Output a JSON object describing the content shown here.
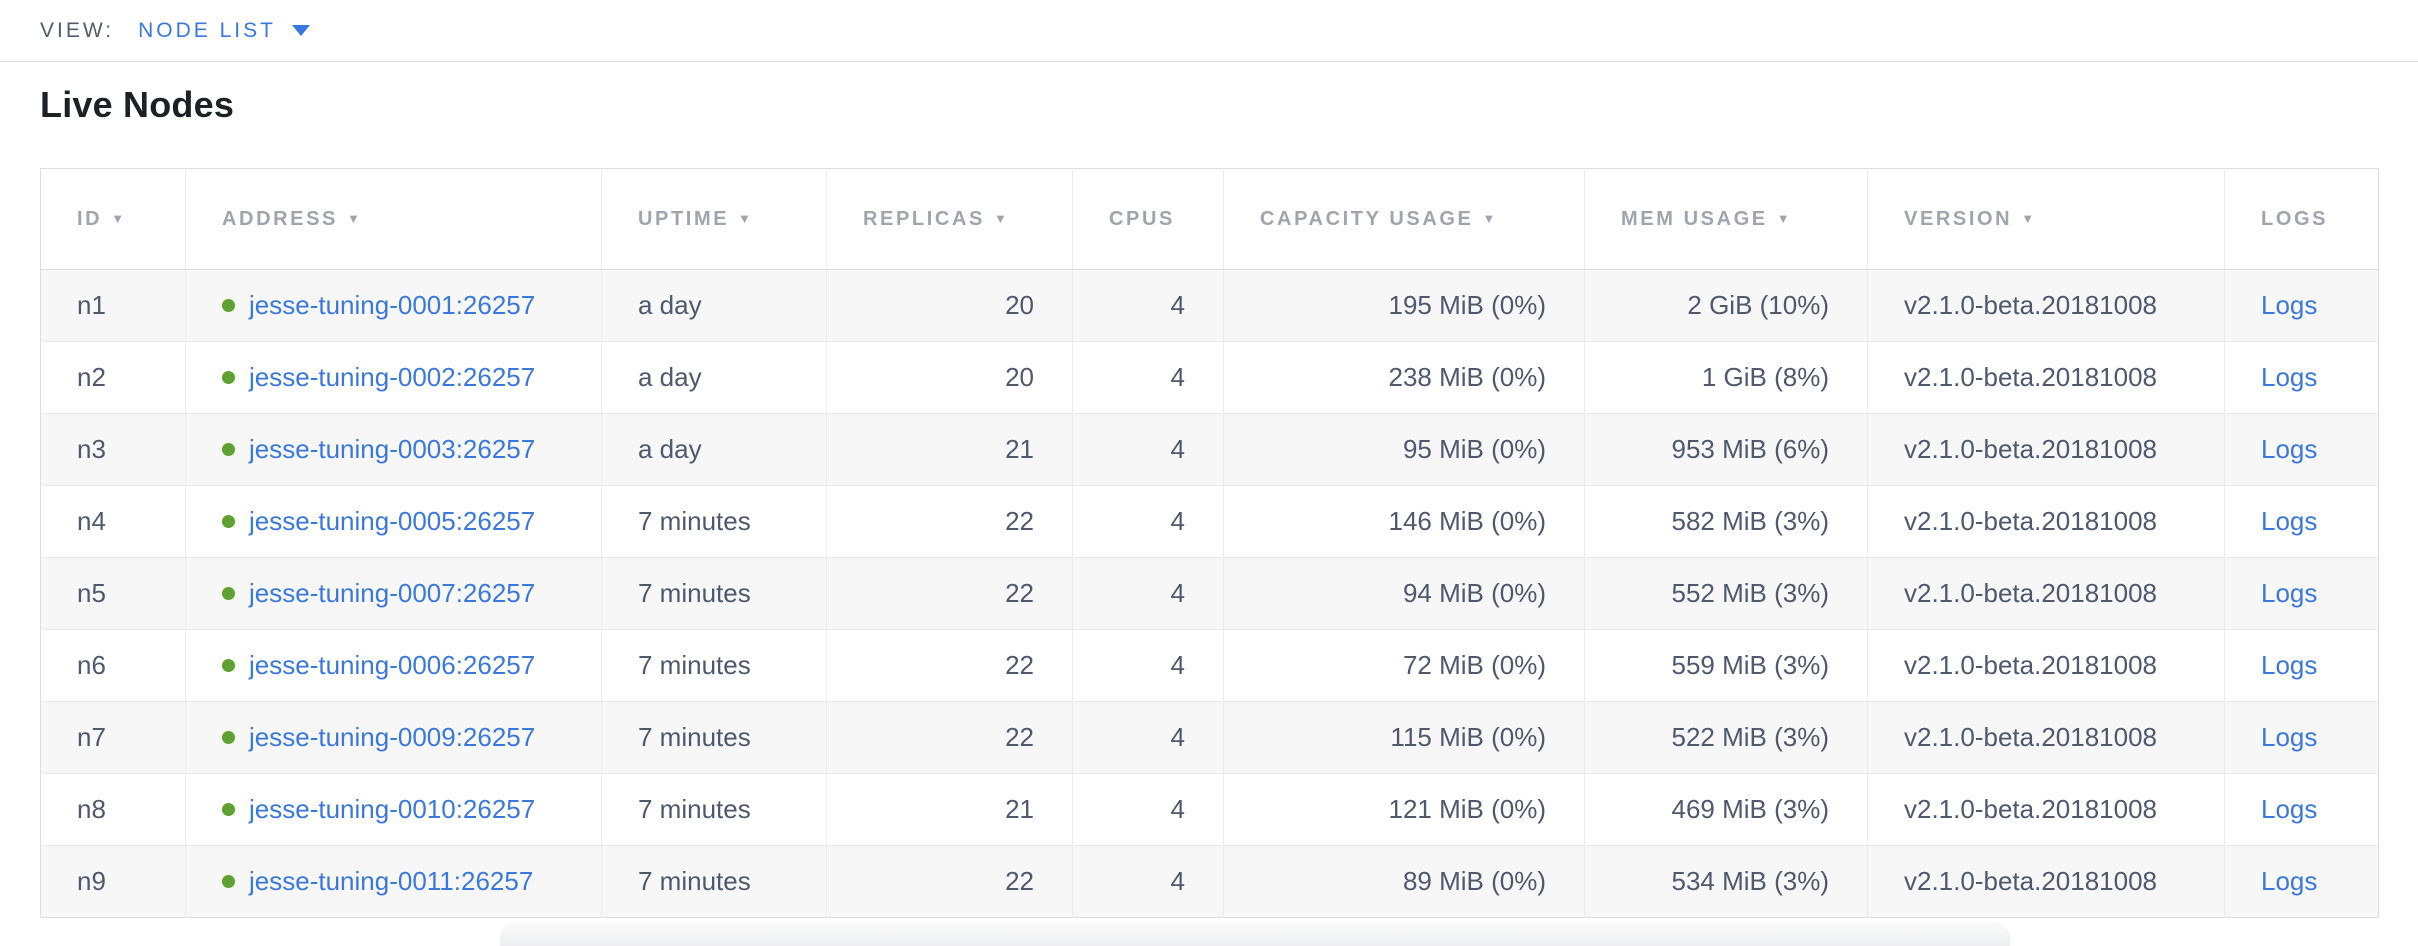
{
  "view_bar": {
    "label": "VIEW:",
    "selected": "NODE LIST"
  },
  "page": {
    "title": "Live Nodes"
  },
  "table": {
    "columns": [
      {
        "key": "id",
        "label": "ID",
        "sortable": true,
        "align": "left"
      },
      {
        "key": "address",
        "label": "ADDRESS",
        "sortable": true,
        "align": "left"
      },
      {
        "key": "uptime",
        "label": "UPTIME",
        "sortable": true,
        "align": "left"
      },
      {
        "key": "replicas",
        "label": "REPLICAS",
        "sortable": true,
        "align": "right"
      },
      {
        "key": "cpus",
        "label": "CPUS",
        "sortable": false,
        "align": "right"
      },
      {
        "key": "capacity",
        "label": "CAPACITY USAGE",
        "sortable": true,
        "align": "right"
      },
      {
        "key": "mem",
        "label": "MEM USAGE",
        "sortable": true,
        "align": "right"
      },
      {
        "key": "version",
        "label": "VERSION",
        "sortable": true,
        "align": "left"
      },
      {
        "key": "logs",
        "label": "LOGS",
        "sortable": false,
        "align": "left"
      }
    ],
    "rows": [
      {
        "id": "n1",
        "status": "live",
        "address": "jesse-tuning-0001:26257",
        "uptime": "a day",
        "replicas": "20",
        "cpus": "4",
        "capacity": "195 MiB (0%)",
        "mem": "2 GiB (10%)",
        "version": "v2.1.0-beta.20181008",
        "logs": "Logs"
      },
      {
        "id": "n2",
        "status": "live",
        "address": "jesse-tuning-0002:26257",
        "uptime": "a day",
        "replicas": "20",
        "cpus": "4",
        "capacity": "238 MiB (0%)",
        "mem": "1 GiB (8%)",
        "version": "v2.1.0-beta.20181008",
        "logs": "Logs"
      },
      {
        "id": "n3",
        "status": "live",
        "address": "jesse-tuning-0003:26257",
        "uptime": "a day",
        "replicas": "21",
        "cpus": "4",
        "capacity": "95 MiB (0%)",
        "mem": "953 MiB (6%)",
        "version": "v2.1.0-beta.20181008",
        "logs": "Logs"
      },
      {
        "id": "n4",
        "status": "live",
        "address": "jesse-tuning-0005:26257",
        "uptime": "7 minutes",
        "replicas": "22",
        "cpus": "4",
        "capacity": "146 MiB (0%)",
        "mem": "582 MiB (3%)",
        "version": "v2.1.0-beta.20181008",
        "logs": "Logs"
      },
      {
        "id": "n5",
        "status": "live",
        "address": "jesse-tuning-0007:26257",
        "uptime": "7 minutes",
        "replicas": "22",
        "cpus": "4",
        "capacity": "94 MiB (0%)",
        "mem": "552 MiB (3%)",
        "version": "v2.1.0-beta.20181008",
        "logs": "Logs"
      },
      {
        "id": "n6",
        "status": "live",
        "address": "jesse-tuning-0006:26257",
        "uptime": "7 minutes",
        "replicas": "22",
        "cpus": "4",
        "capacity": "72 MiB (0%)",
        "mem": "559 MiB (3%)",
        "version": "v2.1.0-beta.20181008",
        "logs": "Logs"
      },
      {
        "id": "n7",
        "status": "live",
        "address": "jesse-tuning-0009:26257",
        "uptime": "7 minutes",
        "replicas": "22",
        "cpus": "4",
        "capacity": "115 MiB (0%)",
        "mem": "522 MiB (3%)",
        "version": "v2.1.0-beta.20181008",
        "logs": "Logs"
      },
      {
        "id": "n8",
        "status": "live",
        "address": "jesse-tuning-0010:26257",
        "uptime": "7 minutes",
        "replicas": "21",
        "cpus": "4",
        "capacity": "121 MiB (0%)",
        "mem": "469 MiB (3%)",
        "version": "v2.1.0-beta.20181008",
        "logs": "Logs"
      },
      {
        "id": "n9",
        "status": "live",
        "address": "jesse-tuning-0011:26257",
        "uptime": "7 minutes",
        "replicas": "22",
        "cpus": "4",
        "capacity": "89 MiB (0%)",
        "mem": "534 MiB (3%)",
        "version": "v2.1.0-beta.20181008",
        "logs": "Logs"
      }
    ]
  },
  "colors": {
    "link_blue": "#3b78dd",
    "live_green": "#5fa130",
    "header_gray": "#a0a5ad",
    "cell_text": "#4f586c",
    "title_text": "#1c2126",
    "view_label_gray": "#545c6a"
  }
}
